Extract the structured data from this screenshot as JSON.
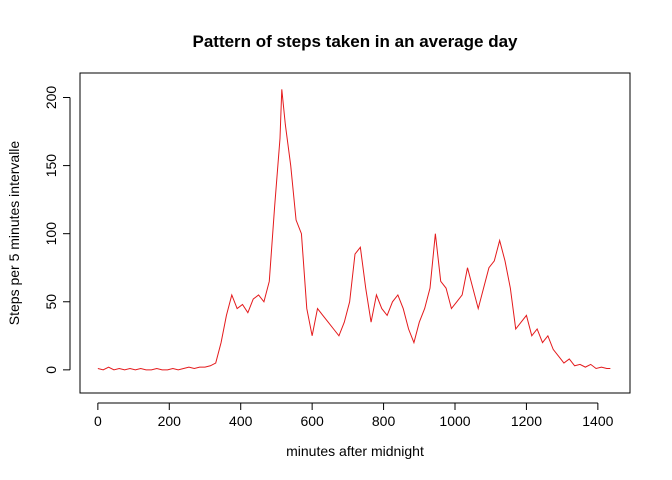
{
  "chart_data": {
    "type": "line",
    "title": "Pattern of steps taken in an average day",
    "xlabel": "minutes after midnight",
    "ylabel": "Steps per 5 minutes intervalle",
    "x": [
      0,
      15,
      30,
      45,
      60,
      75,
      90,
      105,
      120,
      135,
      150,
      165,
      180,
      195,
      210,
      225,
      240,
      255,
      270,
      285,
      300,
      315,
      330,
      345,
      360,
      375,
      390,
      405,
      420,
      435,
      450,
      465,
      480,
      495,
      510,
      515,
      525,
      540,
      555,
      570,
      585,
      600,
      615,
      630,
      645,
      660,
      675,
      690,
      705,
      720,
      735,
      750,
      765,
      780,
      795,
      810,
      825,
      840,
      855,
      870,
      885,
      900,
      915,
      930,
      945,
      960,
      975,
      990,
      1005,
      1020,
      1035,
      1050,
      1065,
      1080,
      1095,
      1110,
      1125,
      1140,
      1155,
      1170,
      1185,
      1200,
      1215,
      1230,
      1245,
      1260,
      1275,
      1290,
      1305,
      1320,
      1335,
      1350,
      1365,
      1380,
      1395,
      1410,
      1425,
      1435
    ],
    "series": [
      {
        "name": "steps",
        "color": "#e41a1c",
        "values": [
          1,
          0,
          2,
          0,
          1,
          0,
          1,
          0,
          1,
          0,
          0,
          1,
          0,
          0,
          1,
          0,
          1,
          2,
          1,
          2,
          2,
          3,
          5,
          20,
          40,
          55,
          45,
          48,
          42,
          52,
          55,
          50,
          65,
          120,
          170,
          206,
          180,
          150,
          110,
          100,
          45,
          25,
          45,
          40,
          35,
          30,
          25,
          35,
          50,
          85,
          90,
          60,
          35,
          55,
          45,
          40,
          50,
          55,
          45,
          30,
          20,
          35,
          45,
          60,
          100,
          65,
          60,
          45,
          50,
          55,
          75,
          60,
          45,
          60,
          75,
          80,
          95,
          80,
          60,
          30,
          35,
          40,
          25,
          30,
          20,
          25,
          15,
          10,
          5,
          8,
          3,
          4,
          2,
          4,
          1,
          2,
          1,
          1
        ]
      }
    ],
    "xlim": [
      -50,
      1490
    ],
    "ylim": [
      -17,
      218
    ],
    "xticks": [
      0,
      200,
      400,
      600,
      800,
      1000,
      1200,
      1400
    ],
    "yticks": [
      0,
      50,
      100,
      150,
      200
    ]
  }
}
